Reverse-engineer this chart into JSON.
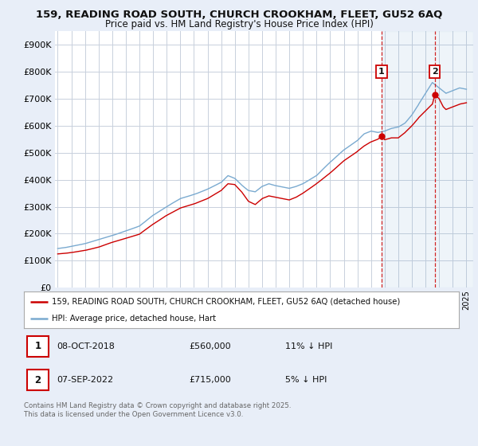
{
  "title1": "159, READING ROAD SOUTH, CHURCH CROOKHAM, FLEET, GU52 6AQ",
  "title2": "Price paid vs. HM Land Registry's House Price Index (HPI)",
  "ylim": [
    0,
    950000
  ],
  "yticks": [
    0,
    100000,
    200000,
    300000,
    400000,
    500000,
    600000,
    700000,
    800000,
    900000
  ],
  "ytick_labels": [
    "£0",
    "£100K",
    "£200K",
    "£300K",
    "£400K",
    "£500K",
    "£600K",
    "£700K",
    "£800K",
    "£900K"
  ],
  "xlim_start": 1994.8,
  "xlim_end": 2025.5,
  "background_color": "#e8eef8",
  "plot_bg_color": "#ffffff",
  "grid_color": "#c8d0dc",
  "red_color": "#cc0000",
  "blue_color": "#7aaad0",
  "marker1_x": 2018.77,
  "marker1_label": "1",
  "marker2_x": 2022.68,
  "marker2_label": "2",
  "legend_line1": "159, READING ROAD SOUTH, CHURCH CROOKHAM, FLEET, GU52 6AQ (detached house)",
  "legend_line2": "HPI: Average price, detached house, Hart",
  "row1_num": "1",
  "row1_date": "08-OCT-2018",
  "row1_price": "£560,000",
  "row1_hpi": "11% ↓ HPI",
  "row2_num": "2",
  "row2_date": "07-SEP-2022",
  "row2_price": "£715,000",
  "row2_hpi": "5% ↓ HPI",
  "footnote": "Contains HM Land Registry data © Crown copyright and database right 2025.\nThis data is licensed under the Open Government Licence v3.0."
}
